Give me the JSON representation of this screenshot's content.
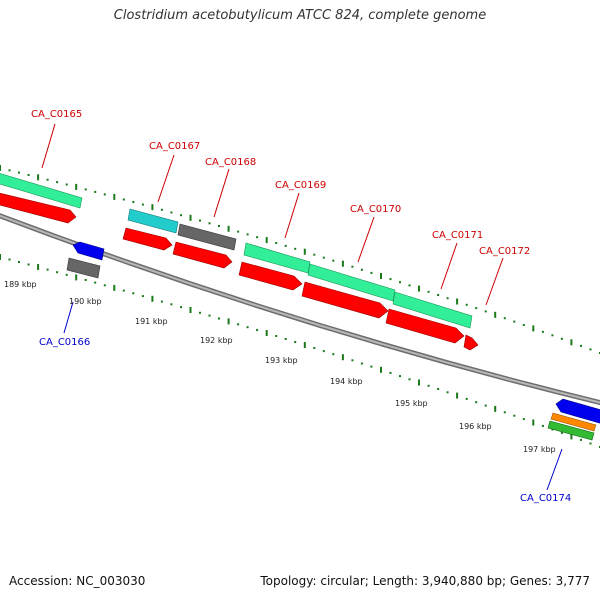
{
  "title": "Clostridium acetobutylicum ATCC 824, complete genome",
  "footer": {
    "accession": "Accession: NC_003030",
    "summary": "Topology: circular; Length: 3,940,880 bp; Genes: 3,777"
  },
  "colors": {
    "backbone": "#8a8a8a",
    "forward_label": "#cc0000",
    "reverse_label": "#0000cc",
    "tick": "#1a7a1a",
    "cds": "#ff0000",
    "gene_mint": "#33ee99",
    "gene_cyan": "#22cccc",
    "gene_gray": "#666666",
    "gene_blue": "#0000ee",
    "gene_orange": "#ff8800",
    "gene_green": "#33bb33"
  },
  "scale": {
    "unit": "kbp",
    "ticks": [
      {
        "label": "189 kbp"
      },
      {
        "label": "190 kbp"
      },
      {
        "label": "191 kbp"
      },
      {
        "label": "192 kbp"
      },
      {
        "label": "193 kbp"
      },
      {
        "label": "194 kbp"
      },
      {
        "label": "195 kbp"
      },
      {
        "label": "196 kbp"
      },
      {
        "label": "197 kbp"
      }
    ]
  },
  "genes": [
    {
      "label": "CA_C0165",
      "strand": "forward"
    },
    {
      "label": "CA_C0166",
      "strand": "reverse"
    },
    {
      "label": "CA_C0167",
      "strand": "forward"
    },
    {
      "label": "CA_C0168",
      "strand": "forward"
    },
    {
      "label": "CA_C0169",
      "strand": "forward"
    },
    {
      "label": "CA_C0170",
      "strand": "forward"
    },
    {
      "label": "CA_C0171",
      "strand": "forward"
    },
    {
      "label": "CA_C0172",
      "strand": "forward"
    },
    {
      "label": "CA_C0174",
      "strand": "reverse"
    }
  ]
}
